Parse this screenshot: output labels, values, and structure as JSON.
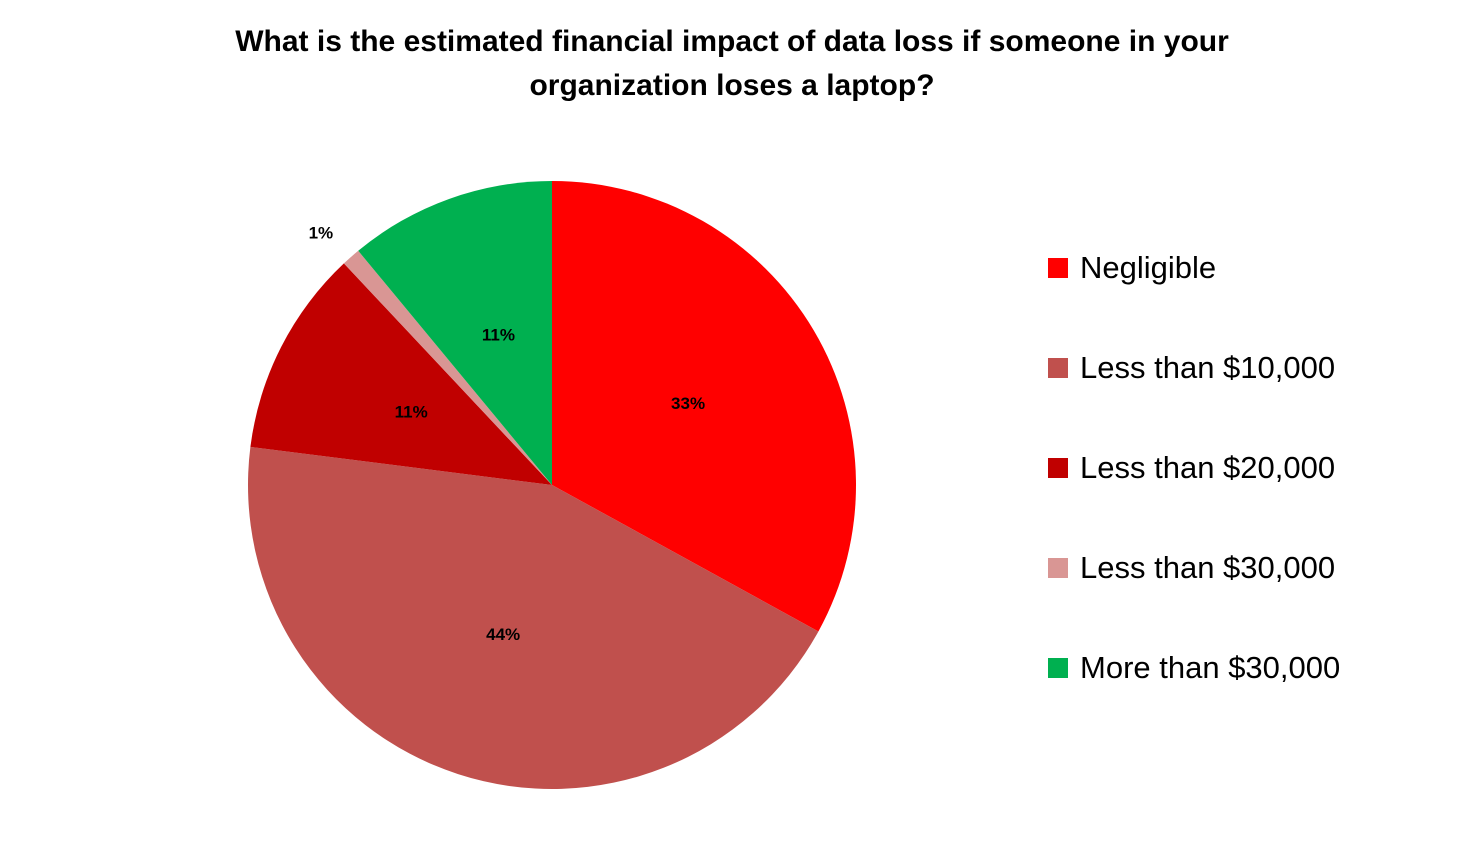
{
  "chart_data": {
    "type": "pie",
    "title": "What is the estimated financial impact of data loss if someone in your organization loses a laptop?",
    "series": [
      {
        "name": "Negligible",
        "color": "#ff0000",
        "values": [
          33
        ],
        "value_labels": [
          "33%"
        ]
      },
      {
        "name": "Less than $10,000",
        "color": "#c0504d",
        "values": [
          44
        ],
        "value_labels": [
          "44%"
        ]
      },
      {
        "name": "Less than $20,000",
        "color": "#c00000",
        "values": [
          11
        ],
        "value_labels": [
          "11%"
        ]
      },
      {
        "name": "Less than $30,000",
        "color": "#d99694",
        "values": [
          1
        ],
        "value_labels": [
          "1%"
        ]
      },
      {
        "name": "More than $30,000",
        "color": "#00b050",
        "values": [
          11
        ],
        "value_labels": [
          "11%"
        ]
      }
    ],
    "legend": "right"
  }
}
